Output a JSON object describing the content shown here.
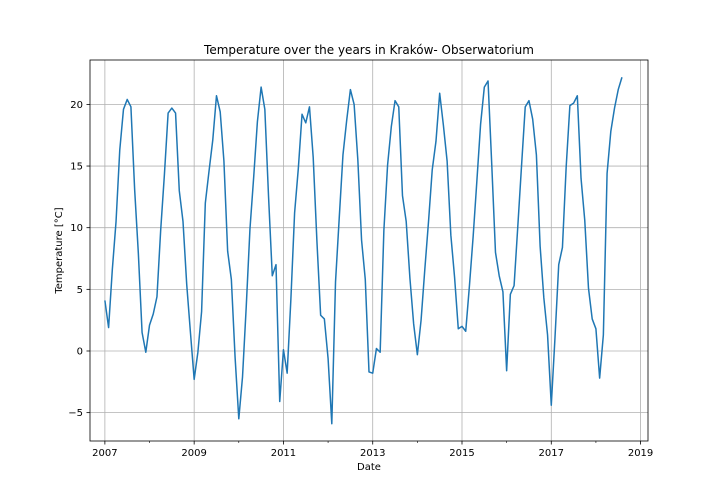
{
  "chart_data": {
    "type": "line",
    "title": "Temperature over the years in Kraków- Obserwatorium",
    "xlabel": "Date",
    "ylabel": "Temperature [°C]",
    "grid": true,
    "xlim": [
      "2006-09",
      "2019-03"
    ],
    "ylim": [
      -7.3,
      23.6
    ],
    "x_ticks": [
      2007,
      2009,
      2011,
      2013,
      2015,
      2017,
      2019
    ],
    "y_ticks": [
      -5,
      0,
      5,
      10,
      15,
      20
    ],
    "series": [
      {
        "color": "#1f77b4",
        "x": [
          "2007-01",
          "2007-02",
          "2007-03",
          "2007-04",
          "2007-05",
          "2007-06",
          "2007-07",
          "2007-08",
          "2007-09",
          "2007-10",
          "2007-11",
          "2007-12",
          "2008-01",
          "2008-02",
          "2008-03",
          "2008-04",
          "2008-05",
          "2008-06",
          "2008-07",
          "2008-08",
          "2008-09",
          "2008-10",
          "2008-11",
          "2008-12",
          "2009-01",
          "2009-02",
          "2009-03",
          "2009-04",
          "2009-05",
          "2009-06",
          "2009-07",
          "2009-08",
          "2009-09",
          "2009-10",
          "2009-11",
          "2009-12",
          "2010-01",
          "2010-02",
          "2010-03",
          "2010-04",
          "2010-05",
          "2010-06",
          "2010-07",
          "2010-08",
          "2010-09",
          "2010-10",
          "2010-11",
          "2010-12",
          "2011-01",
          "2011-02",
          "2011-03",
          "2011-04",
          "2011-05",
          "2011-06",
          "2011-07",
          "2011-08",
          "2011-09",
          "2011-10",
          "2011-11",
          "2011-12",
          "2012-01",
          "2012-02",
          "2012-03",
          "2012-04",
          "2012-05",
          "2012-06",
          "2012-07",
          "2012-08",
          "2012-09",
          "2012-10",
          "2012-11",
          "2012-12",
          "2013-01",
          "2013-02",
          "2013-03",
          "2013-04",
          "2013-05",
          "2013-06",
          "2013-07",
          "2013-08",
          "2013-09",
          "2013-10",
          "2013-11",
          "2013-12",
          "2014-01",
          "2014-02",
          "2014-03",
          "2014-04",
          "2014-05",
          "2014-06",
          "2014-07",
          "2014-08",
          "2014-09",
          "2014-10",
          "2014-11",
          "2014-12",
          "2015-01",
          "2015-02",
          "2015-03",
          "2015-04",
          "2015-05",
          "2015-06",
          "2015-07",
          "2015-08",
          "2015-09",
          "2015-10",
          "2015-11",
          "2015-12",
          "2016-01",
          "2016-02",
          "2016-03",
          "2016-04",
          "2016-05",
          "2016-06",
          "2016-07",
          "2016-08",
          "2016-09",
          "2016-10",
          "2016-11",
          "2016-12",
          "2017-01",
          "2017-02",
          "2017-03",
          "2017-04",
          "2017-05",
          "2017-06",
          "2017-07",
          "2017-08",
          "2017-09",
          "2017-10",
          "2017-11",
          "2017-12",
          "2018-01",
          "2018-02",
          "2018-03",
          "2018-04",
          "2018-05",
          "2018-06",
          "2018-07",
          "2018-08"
        ],
        "y": [
          4.1,
          1.9,
          6.6,
          10.5,
          16.3,
          19.6,
          20.4,
          19.8,
          13.1,
          7.9,
          1.5,
          -0.1,
          2.1,
          3.0,
          4.4,
          9.8,
          14.3,
          19.3,
          19.7,
          19.3,
          13.0,
          10.5,
          5.4,
          1.5,
          -2.3,
          -0.1,
          3.2,
          12.0,
          14.6,
          17.1,
          20.7,
          19.4,
          15.4,
          8.1,
          5.8,
          -0.5,
          -5.5,
          -2.1,
          3.6,
          9.9,
          14.1,
          18.6,
          21.4,
          19.6,
          12.5,
          6.1,
          7.0,
          -4.1,
          0.1,
          -1.8,
          4.2,
          11.2,
          14.8,
          19.2,
          18.5,
          19.8,
          15.7,
          8.9,
          2.9,
          2.6,
          -0.6,
          -5.9,
          5.6,
          10.8,
          15.9,
          18.7,
          21.2,
          20.0,
          15.5,
          9.0,
          5.8,
          -1.7,
          -1.8,
          0.2,
          -0.1,
          9.8,
          15.1,
          18.2,
          20.3,
          19.8,
          12.6,
          10.5,
          5.9,
          2.2,
          -0.3,
          2.5,
          6.6,
          10.5,
          14.7,
          17.0,
          20.9,
          18.3,
          15.4,
          9.4,
          6.0,
          1.8,
          2.0,
          1.6,
          5.3,
          9.3,
          13.8,
          18.4,
          21.4,
          21.9,
          15.1,
          8.0,
          6.1,
          4.8,
          -1.6,
          4.6,
          5.3,
          10.1,
          15.0,
          19.8,
          20.3,
          18.8,
          15.9,
          8.5,
          4.3,
          1.3,
          -4.4,
          1.1,
          7.0,
          8.4,
          14.9,
          19.9,
          20.1,
          20.7,
          14.0,
          10.6,
          5.1,
          2.6,
          1.8,
          -2.2,
          1.3,
          14.4,
          17.8,
          19.7,
          21.2,
          22.2
        ]
      }
    ]
  }
}
